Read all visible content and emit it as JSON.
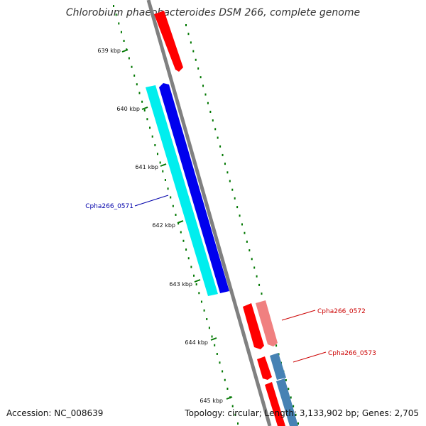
{
  "title": "Chlorobium phaeobacteroides DSM 266, complete genome",
  "accession": "Accession: NC_008639",
  "summary": "Topology: circular; Length: 3,133,902 bp; Genes: 2,705",
  "ticks": [
    "639 kbp",
    "640 kbp",
    "641 kbp",
    "642 kbp",
    "643 kbp",
    "644 kbp",
    "645 kbp"
  ],
  "genes": [
    {
      "label": "Cpha266_0571",
      "color": "#0000aa"
    },
    {
      "label": "Cpha266_0572",
      "color": "#cc0000"
    },
    {
      "label": "Cpha266_0573",
      "color": "#cc0000"
    }
  ],
  "colors": {
    "axis": "#808080",
    "tick": "#007700",
    "forward_cds": "#ff0000",
    "forward_gene": "#f08080",
    "reverse_cds": "#0000ee",
    "reverse_gene": "#00eeee",
    "reverse_gene_alt": "#4682b4"
  }
}
